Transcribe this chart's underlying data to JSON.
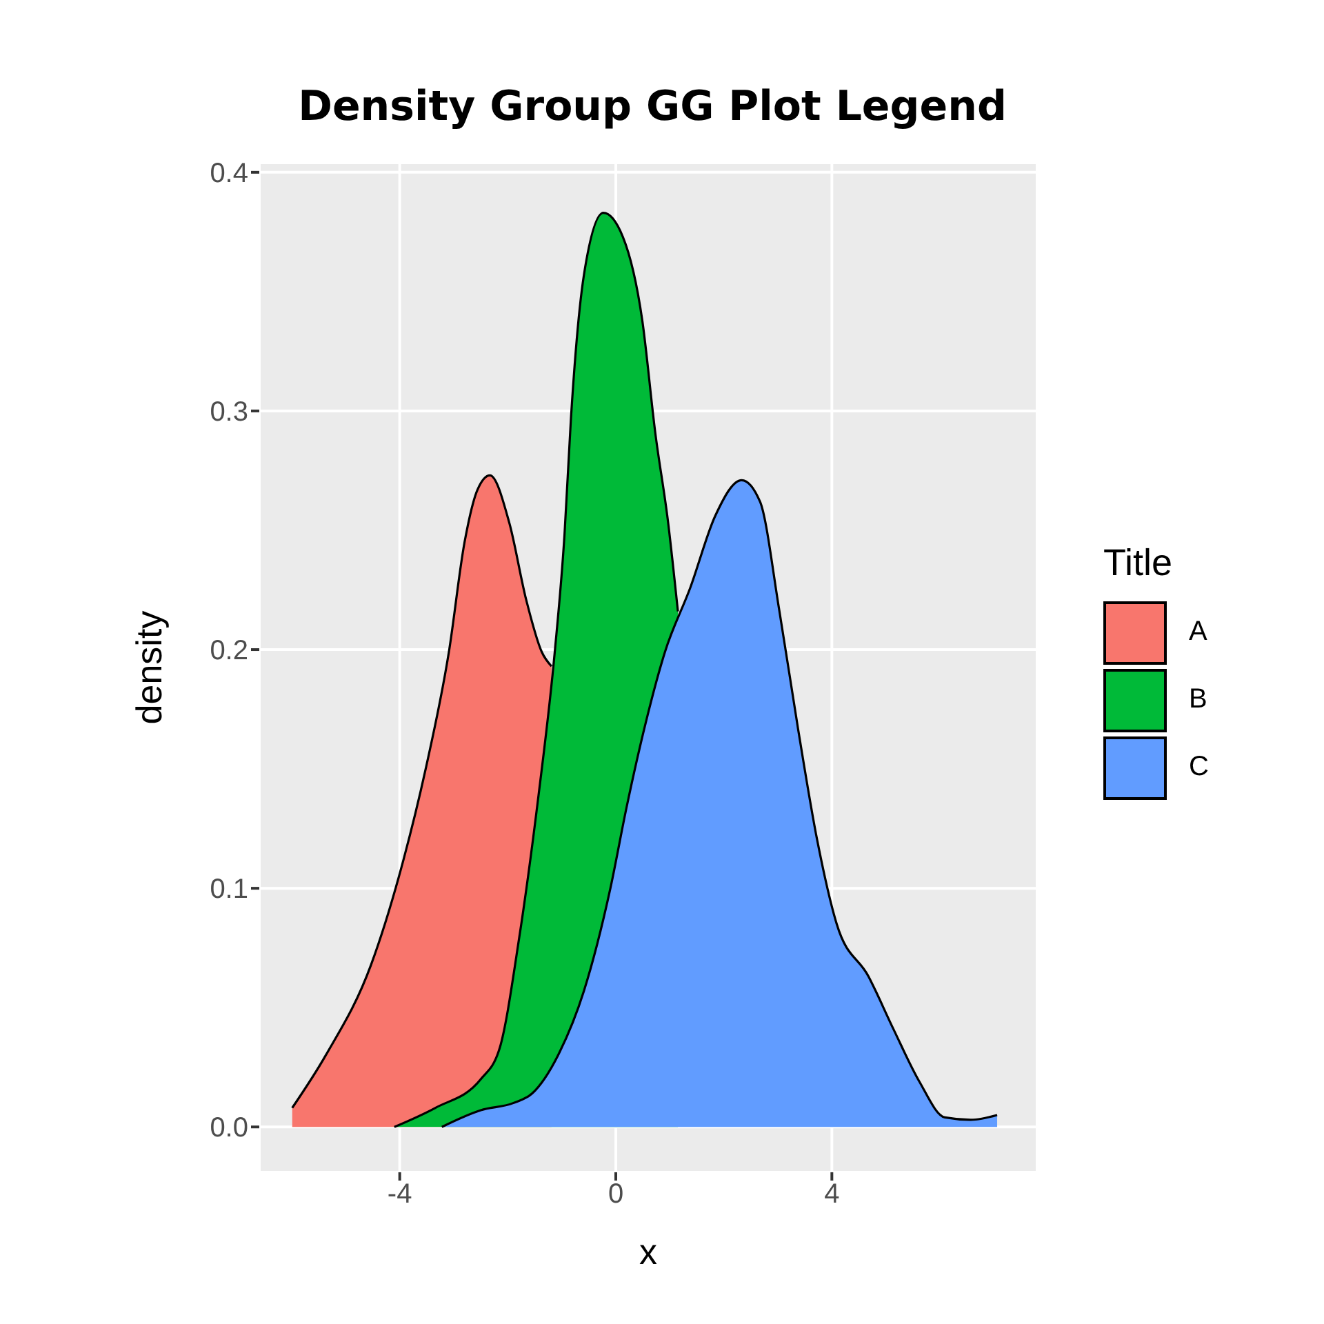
{
  "chart_data": {
    "type": "area",
    "title": "Density Group GG Plot Legend",
    "xlabel": "x",
    "ylabel": "density",
    "legend_title": "Title",
    "legend": "right",
    "grid": true,
    "xlim": [
      -6.6,
      7.8
    ],
    "xticks": [
      -4,
      0,
      4
    ],
    "ylim": [
      -0.019,
      0.404
    ],
    "yticks": [
      {
        "value": 0,
        "label": "0.0"
      },
      {
        "value": 0.1,
        "label": "0.1"
      },
      {
        "value": 0.2,
        "label": "0.2"
      },
      {
        "value": 0.3,
        "label": "0.3"
      },
      {
        "value": 0.4,
        "label": "0.4"
      }
    ],
    "series": [
      {
        "name": "A",
        "color": "#f8766d",
        "x": [
          -5.99,
          -5.37,
          -4.53,
          -3.93,
          -3.52,
          -3.09,
          -2.8,
          -2.56,
          -2.33,
          -1.97,
          -1.66,
          -1.37,
          -1.19
        ],
        "values": [
          0.008,
          0.03,
          0.068,
          0.112,
          0.15,
          0.199,
          0.245,
          0.267,
          0.273,
          0.253,
          0.221,
          0.199,
          0.193
        ]
      },
      {
        "name": "B",
        "color": "#00ba38",
        "x": [
          -4.1,
          -3.34,
          -2.5,
          -2.15,
          -1.79,
          -1.43,
          -1.13,
          -0.95,
          -0.83,
          -0.59,
          -0.23,
          0.13,
          0.49,
          0.73,
          0.97,
          1.15
        ],
        "values": [
          0,
          0.008,
          0.02,
          0.033,
          0.079,
          0.139,
          0.199,
          0.248,
          0.297,
          0.357,
          0.383,
          0.373,
          0.338,
          0.291,
          0.253,
          0.216
        ]
      },
      {
        "name": "C",
        "color": "#619cff",
        "x": [
          -3.22,
          -2.5,
          -1.9,
          -1.55,
          -1.07,
          -0.59,
          -0.1,
          0.2,
          0.55,
          0.91,
          1.38,
          1.84,
          2.33,
          2.67,
          3.03,
          3.38,
          3.73,
          4.09,
          4.68,
          5.14,
          5.62,
          6.09,
          6.57,
          7.06
        ],
        "values": [
          0,
          0.007,
          0.01,
          0.014,
          0.03,
          0.057,
          0.1,
          0.134,
          0.169,
          0.199,
          0.226,
          0.256,
          0.271,
          0.262,
          0.216,
          0.166,
          0.12,
          0.085,
          0.063,
          0.041,
          0.019,
          0.004,
          0.003,
          0.005
        ]
      }
    ]
  }
}
